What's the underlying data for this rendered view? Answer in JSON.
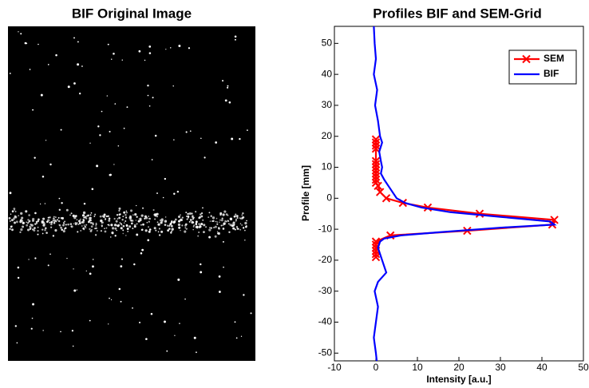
{
  "image_panel": {
    "title": "BIF Original Image"
  },
  "chart_data": {
    "type": "line",
    "title": "Profiles BIF and SEM-Grid",
    "x_label": "Intensity [a.u.]",
    "y_label": "Profile [mm]",
    "xlim": [
      -10,
      50
    ],
    "ylim": [
      -52.5,
      55.5
    ],
    "xticks": [
      -10,
      0,
      10,
      20,
      30,
      40,
      50
    ],
    "yticks": [
      -50,
      -40,
      -30,
      -20,
      -10,
      0,
      10,
      20,
      30,
      40,
      50
    ],
    "legend": "upper right",
    "series": [
      {
        "name": "SEM",
        "color": "#ff0000",
        "marker": "x",
        "x": [
          0,
          0,
          0,
          0,
          0,
          0,
          0,
          0,
          0,
          0,
          0,
          0,
          0.5,
          1,
          2.5,
          6.5,
          12.5,
          25,
          43,
          42.5,
          22,
          3.5,
          0,
          0,
          0,
          0,
          0,
          0
        ],
        "y": [
          19,
          18,
          17,
          16,
          12,
          11,
          10,
          9,
          8,
          7,
          6,
          5,
          4,
          2,
          0,
          -1.5,
          -3,
          -5,
          -7,
          -8.5,
          -10.5,
          -12,
          -14,
          -15,
          -16,
          -17,
          -18,
          -19
        ]
      },
      {
        "name": "BIF",
        "color": "#0000ff",
        "marker": null,
        "x": [
          -0.5,
          -0.3,
          0,
          -0.5,
          0.3,
          -0.2,
          0.5,
          0.8,
          1,
          1.5,
          0.8,
          1.2,
          1.5,
          1.2,
          2,
          3,
          4,
          5,
          7,
          11,
          18,
          30,
          42,
          43,
          30,
          15,
          6,
          2,
          1,
          0.5,
          1.5,
          2.5,
          0.5,
          -0.3,
          0.5,
          0,
          -0.5,
          0,
          0.2
        ],
        "y": [
          55.5,
          50,
          45,
          40,
          35,
          30,
          25,
          22,
          20,
          18,
          15,
          12,
          10,
          8,
          6,
          4,
          2,
          0,
          -1.5,
          -3,
          -4.5,
          -6,
          -7.5,
          -8.5,
          -9.5,
          -11,
          -12,
          -13,
          -14,
          -16,
          -20,
          -24,
          -27,
          -30,
          -35,
          -40,
          -45,
          -50,
          -52.5
        ]
      }
    ]
  }
}
